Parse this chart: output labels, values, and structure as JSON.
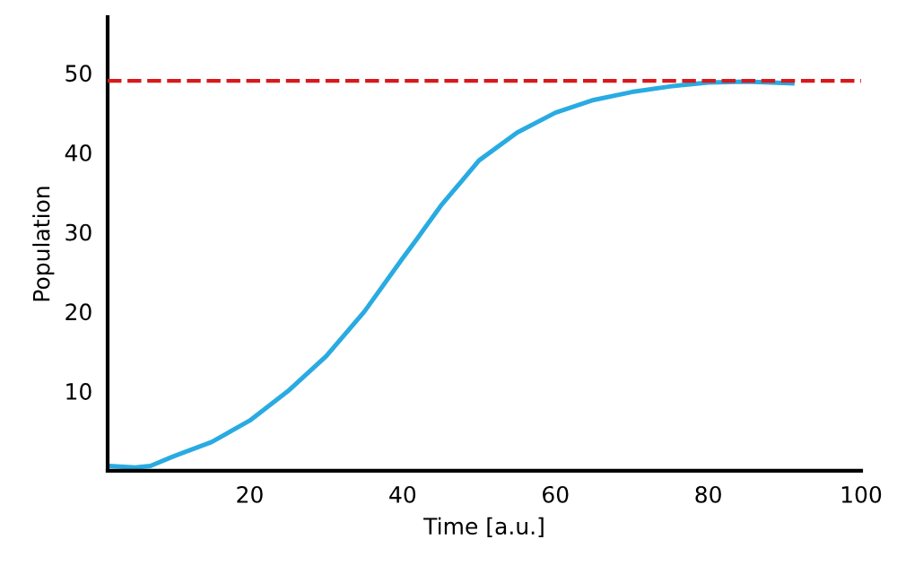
{
  "chart_data": {
    "type": "line",
    "xlabel": "Time [a.u.]",
    "ylabel": "Population",
    "x": [
      1.5,
      3,
      5,
      7,
      10,
      15,
      20,
      25,
      30,
      35,
      40,
      42,
      45,
      50,
      55,
      60,
      65,
      70,
      75,
      80,
      85,
      91
    ],
    "series": [
      {
        "color": "#29abe2",
        "values": [
          0.6,
          0.5,
          0.4,
          0.6,
          1.8,
          3.6,
          6.3,
          10,
          14.4,
          20,
          26.7,
          29.3,
          33.3,
          39,
          42.5,
          45,
          46.6,
          47.6,
          48.3,
          48.8,
          48.9,
          48.7
        ]
      }
    ],
    "xlim": [
      1.4,
      100
    ],
    "ylim": [
      0,
      57
    ],
    "xticks": [
      20,
      40,
      60,
      80,
      100
    ],
    "yticks": [
      10,
      20,
      30,
      40,
      50
    ],
    "ref_lines": [
      {
        "axis": "y",
        "value": 49,
        "color": "#d7191c",
        "line_style": "dashed"
      }
    ],
    "grid": false,
    "legend": false,
    "marker": "none",
    "line_style": "solid"
  }
}
